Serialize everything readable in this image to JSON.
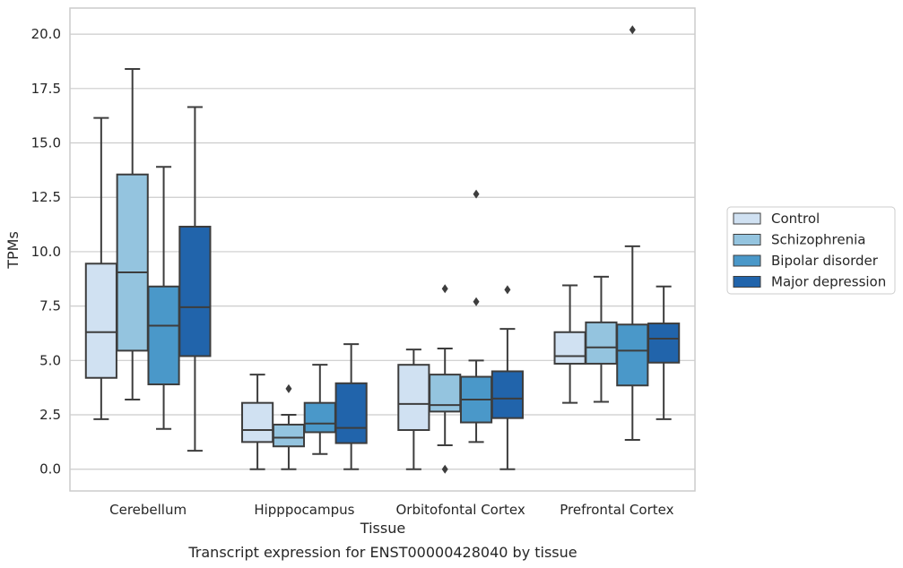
{
  "chart_data": {
    "type": "boxplot",
    "caption": "Transcript expression for ENST00000428040 by tissue",
    "xlabel": "Tissue",
    "ylabel": "TPMs",
    "ylim": [
      -1.0,
      21.2
    ],
    "yticks": [
      0.0,
      2.5,
      5.0,
      7.5,
      10.0,
      12.5,
      15.0,
      17.5,
      20.0
    ],
    "ytick_labels": [
      "0.0",
      "2.5",
      "5.0",
      "7.5",
      "10.0",
      "12.5",
      "15.0",
      "17.5",
      "20.0"
    ],
    "grid": "horizontal",
    "legend_placement": "right-center",
    "categories": [
      "Cerebellum",
      "Hipppocampus",
      "Orbitofontal Cortex",
      "Prefrontal Cortex"
    ],
    "series": [
      {
        "name": "Control",
        "color": "#d0e1f2",
        "boxes": [
          {
            "whislo": 2.3,
            "q1": 4.2,
            "med": 6.3,
            "q3": 9.45,
            "whishi": 16.15,
            "fliers": []
          },
          {
            "whislo": 0.0,
            "q1": 1.25,
            "med": 1.8,
            "q3": 3.05,
            "whishi": 4.35,
            "fliers": []
          },
          {
            "whislo": 0.0,
            "q1": 1.8,
            "med": 3.0,
            "q3": 4.8,
            "whishi": 5.5,
            "fliers": []
          },
          {
            "whislo": 3.05,
            "q1": 4.85,
            "med": 5.2,
            "q3": 6.3,
            "whishi": 8.45,
            "fliers": []
          }
        ]
      },
      {
        "name": "Schizophrenia",
        "color": "#94c4df",
        "boxes": [
          {
            "whislo": 3.2,
            "q1": 5.45,
            "med": 9.05,
            "q3": 13.55,
            "whishi": 18.4,
            "fliers": []
          },
          {
            "whislo": 0.0,
            "q1": 1.05,
            "med": 1.45,
            "q3": 2.05,
            "whishi": 2.5,
            "fliers": [
              3.7
            ]
          },
          {
            "whislo": 1.1,
            "q1": 2.65,
            "med": 2.95,
            "q3": 4.35,
            "whishi": 5.55,
            "fliers": [
              8.3,
              0.0
            ]
          },
          {
            "whislo": 3.1,
            "q1": 4.85,
            "med": 5.6,
            "q3": 6.75,
            "whishi": 8.85,
            "fliers": []
          }
        ]
      },
      {
        "name": "Bipolar disorder",
        "color": "#4a98c9",
        "boxes": [
          {
            "whislo": 1.85,
            "q1": 3.9,
            "med": 6.6,
            "q3": 8.4,
            "whishi": 13.9,
            "fliers": []
          },
          {
            "whislo": 0.7,
            "q1": 1.7,
            "med": 2.1,
            "q3": 3.05,
            "whishi": 4.8,
            "fliers": []
          },
          {
            "whislo": 1.25,
            "q1": 2.15,
            "med": 3.2,
            "q3": 4.25,
            "whishi": 5.0,
            "fliers": [
              12.65,
              7.7
            ]
          },
          {
            "whislo": 1.35,
            "q1": 3.85,
            "med": 5.45,
            "q3": 6.65,
            "whishi": 10.25,
            "fliers": [
              20.2
            ]
          }
        ]
      },
      {
        "name": "Major depression",
        "color": "#2164ab",
        "boxes": [
          {
            "whislo": 0.85,
            "q1": 5.2,
            "med": 7.45,
            "q3": 11.15,
            "whishi": 16.65,
            "fliers": []
          },
          {
            "whislo": 0.0,
            "q1": 1.2,
            "med": 1.9,
            "q3": 3.95,
            "whishi": 5.75,
            "fliers": []
          },
          {
            "whislo": 0.0,
            "q1": 2.35,
            "med": 3.25,
            "q3": 4.5,
            "whishi": 6.45,
            "fliers": [
              8.25
            ]
          },
          {
            "whislo": 2.3,
            "q1": 4.9,
            "med": 6.0,
            "q3": 6.7,
            "whishi": 8.4,
            "fliers": []
          }
        ]
      }
    ]
  }
}
